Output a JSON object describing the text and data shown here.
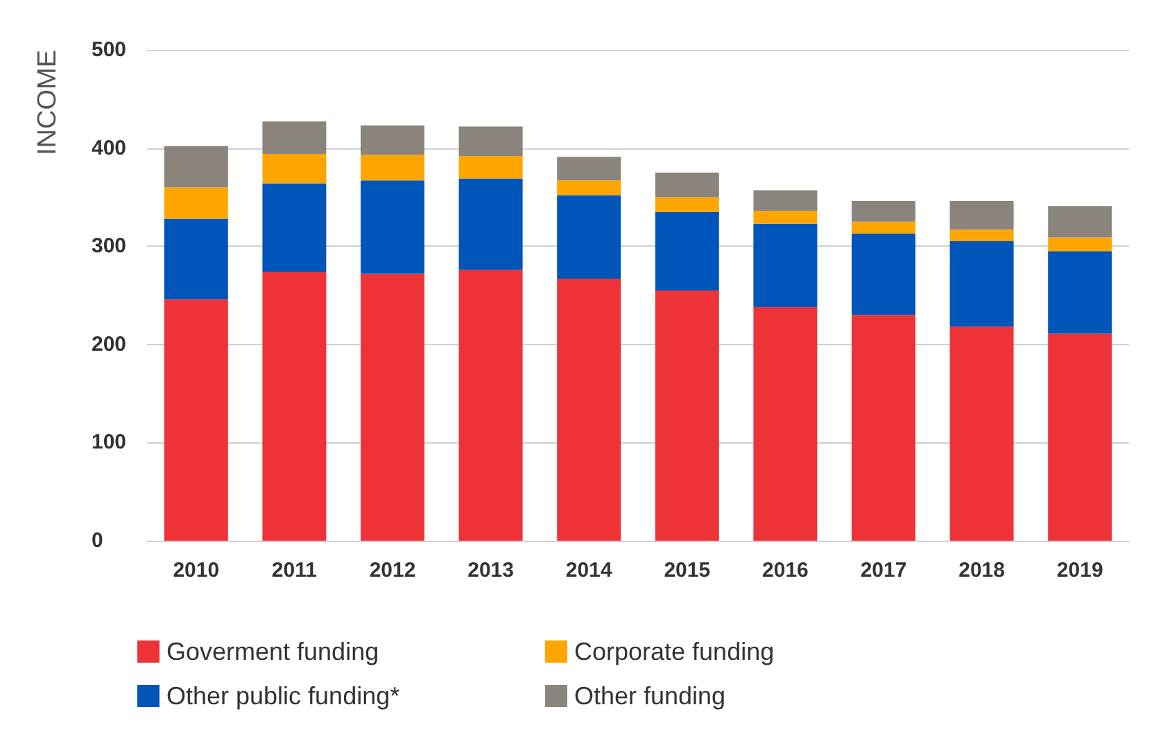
{
  "chart_data": {
    "type": "bar",
    "stacked": true,
    "ylabel": "INCOME",
    "categories": [
      "2010",
      "2011",
      "2012",
      "2013",
      "2014",
      "2015",
      "2016",
      "2017",
      "2018",
      "2019"
    ],
    "series": [
      {
        "name": "Goverment funding",
        "color": "#ee3338",
        "values": [
          246,
          274,
          272,
          276,
          267,
          255,
          238,
          230,
          218,
          211
        ]
      },
      {
        "name": "Other public funding*",
        "color": "#0055b8",
        "values": [
          82,
          90,
          95,
          93,
          85,
          80,
          85,
          83,
          87,
          84
        ]
      },
      {
        "name": "Corporate funding",
        "color": "#ffa500",
        "values": [
          32,
          30,
          26,
          23,
          15,
          15,
          13,
          12,
          12,
          14
        ]
      },
      {
        "name": "Other funding",
        "color": "#8a847c",
        "values": [
          42,
          33,
          30,
          30,
          24,
          25,
          21,
          21,
          29,
          32
        ]
      }
    ],
    "ylim": [
      0,
      500
    ],
    "yticks": [
      0,
      100,
      200,
      300,
      400,
      500
    ],
    "grid": "y",
    "legend": "bottom"
  }
}
